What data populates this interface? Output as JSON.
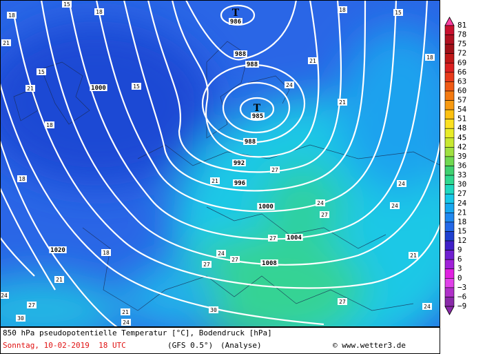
{
  "map": {
    "lows": [
      "T",
      "T"
    ],
    "isobar_labels": [
      "986",
      "988",
      "988",
      "985",
      "1000",
      "988",
      "992",
      "996",
      "1000",
      "1004",
      "1008",
      "1020"
    ],
    "temperature_labels": [
      "18",
      "15",
      "18",
      "21",
      "15",
      "21",
      "15",
      "18",
      "18",
      "18",
      "21",
      "24",
      "27",
      "30",
      "24",
      "21",
      "27",
      "24",
      "27",
      "30",
      "27",
      "21",
      "24",
      "21",
      "18",
      "15",
      "18",
      "21",
      "24",
      "27",
      "27",
      "24",
      "24",
      "21",
      "27",
      "24"
    ]
  },
  "colorbar": {
    "labels": [
      "81",
      "78",
      "75",
      "72",
      "69",
      "66",
      "63",
      "60",
      "57",
      "54",
      "51",
      "48",
      "45",
      "42",
      "39",
      "36",
      "33",
      "30",
      "27",
      "24",
      "21",
      "18",
      "15",
      "12",
      "9",
      "6",
      "3",
      "0",
      "−3",
      "−6",
      "−9"
    ],
    "colors": [
      "#ff3fa0",
      "#c8102e",
      "#b01020",
      "#a01018",
      "#c01818",
      "#dc2020",
      "#e83a1a",
      "#f05a14",
      "#f47a10",
      "#f89a10",
      "#fcc010",
      "#fce020",
      "#e8ec28",
      "#c8e830",
      "#a0e040",
      "#70d850",
      "#40d070",
      "#30d890",
      "#20d8c0",
      "#18c8e8",
      "#18a8f0",
      "#2088f0",
      "#2468e8",
      "#2040d0",
      "#4020c8",
      "#7020d0",
      "#a020d8",
      "#e020e0",
      "#e040e8",
      "#b030c8",
      "#8a2aa8"
    ]
  },
  "footer": {
    "description": "850 hPa pseudopotentielle Temperatur [°C], Bodendruck [hPa]",
    "date": "Sonntag, 10-02-2019  18 UTC",
    "model": "(GFS 0.5°)",
    "mode": "(Analyse)",
    "credit": "© www.wetter3.de"
  }
}
